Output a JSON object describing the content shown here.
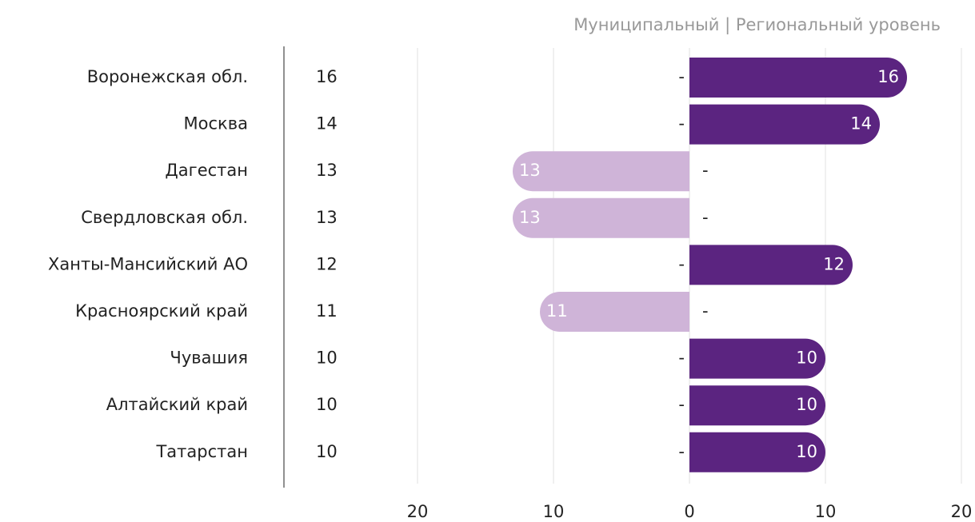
{
  "chart_data": {
    "type": "diverging-bar",
    "subtitle": "Муниципальный | Региональный уровень",
    "categories": [
      "Воронежская обл.",
      "Москва",
      "Дагестан",
      "Свердловская обл.",
      "Ханты-Мансийский АО",
      "Красноярский край",
      "Чувашия",
      "Алтайский край",
      "Татарстан"
    ],
    "totals": [
      16,
      14,
      13,
      13,
      12,
      11,
      10,
      10,
      10
    ],
    "series": [
      {
        "name": "Муниципальный",
        "color": "#cfb4d8",
        "direction": "left",
        "values": [
          0,
          0,
          13,
          13,
          0,
          11,
          0,
          0,
          0
        ],
        "value_labels": [
          "-",
          "-",
          "13",
          "13",
          "-",
          "11",
          "-",
          "-",
          "-"
        ]
      },
      {
        "name": "Региональный уровень",
        "color": "#5b2480",
        "direction": "right",
        "values": [
          16,
          14,
          0,
          0,
          12,
          0,
          10,
          10,
          10
        ],
        "value_labels": [
          "16",
          "14",
          "-",
          "-",
          "12",
          "-",
          "10",
          "10",
          "10"
        ]
      }
    ],
    "xlim": [
      -20,
      20
    ],
    "xticks": [
      {
        "value": -20,
        "label": "20"
      },
      {
        "value": -10,
        "label": "10"
      },
      0,
      10,
      20
    ],
    "grid": true
  }
}
